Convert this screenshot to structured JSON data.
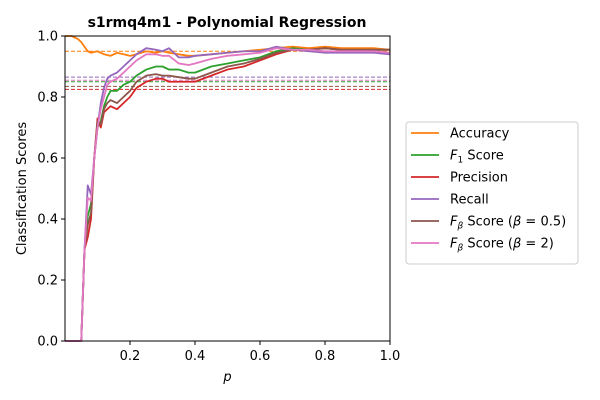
{
  "chart_data": {
    "type": "line",
    "title": "s1rmq4m1 - Polynomial Regression",
    "xlabel": "p",
    "ylabel": "Classification Scores",
    "xlim": [
      0.0,
      1.0
    ],
    "ylim": [
      0.0,
      1.0
    ],
    "x_ticks": [
      {
        "value": 0.2,
        "label": "0.2"
      },
      {
        "value": 0.4,
        "label": "0.4"
      },
      {
        "value": 0.6,
        "label": "0.6"
      },
      {
        "value": 0.8,
        "label": "0.8"
      },
      {
        "value": 1.0,
        "label": "1.0"
      }
    ],
    "y_ticks": [
      {
        "value": 0.0,
        "label": "0.0"
      },
      {
        "value": 0.2,
        "label": "0.2"
      },
      {
        "value": 0.4,
        "label": "0.4"
      },
      {
        "value": 0.6,
        "label": "0.6"
      },
      {
        "value": 0.8,
        "label": "0.8"
      },
      {
        "value": 1.0,
        "label": "1.0"
      }
    ],
    "grid": false,
    "legend_position": "right",
    "series": [
      {
        "name": "Accuracy",
        "color": "#ff7f0e",
        "baseline": 0.95,
        "x": [
          0.0,
          0.02,
          0.04,
          0.05,
          0.06,
          0.07,
          0.08,
          0.1,
          0.12,
          0.14,
          0.16,
          0.18,
          0.2,
          0.22,
          0.25,
          0.28,
          0.3,
          0.32,
          0.35,
          0.38,
          0.4,
          0.45,
          0.5,
          0.55,
          0.6,
          0.65,
          0.7,
          0.75,
          0.8,
          0.85,
          0.9,
          0.95,
          1.0
        ],
        "y": [
          1.0,
          1.0,
          0.99,
          0.98,
          0.965,
          0.95,
          0.945,
          0.95,
          0.94,
          0.935,
          0.945,
          0.94,
          0.935,
          0.94,
          0.95,
          0.945,
          0.95,
          0.945,
          0.94,
          0.935,
          0.935,
          0.94,
          0.945,
          0.95,
          0.955,
          0.96,
          0.965,
          0.96,
          0.965,
          0.96,
          0.96,
          0.96,
          0.955
        ]
      },
      {
        "name": "F₁ Score",
        "color": "#2ca02c",
        "baseline": 0.85,
        "x": [
          0.0,
          0.04,
          0.05,
          0.06,
          0.07,
          0.08,
          0.09,
          0.1,
          0.11,
          0.12,
          0.13,
          0.14,
          0.16,
          0.18,
          0.2,
          0.22,
          0.25,
          0.28,
          0.3,
          0.32,
          0.35,
          0.38,
          0.4,
          0.45,
          0.5,
          0.55,
          0.6,
          0.65,
          0.7,
          0.75,
          0.8,
          0.85,
          0.9,
          0.95,
          1.0
        ],
        "y": [
          0.0,
          0.0,
          0.0,
          0.3,
          0.41,
          0.45,
          0.6,
          0.7,
          0.72,
          0.77,
          0.8,
          0.82,
          0.82,
          0.84,
          0.85,
          0.87,
          0.89,
          0.9,
          0.9,
          0.89,
          0.89,
          0.88,
          0.88,
          0.9,
          0.91,
          0.92,
          0.93,
          0.95,
          0.96,
          0.955,
          0.96,
          0.955,
          0.955,
          0.955,
          0.955
        ]
      },
      {
        "name": "Precision",
        "color": "#d62728",
        "baseline": 0.825,
        "x": [
          0.0,
          0.04,
          0.05,
          0.06,
          0.07,
          0.08,
          0.09,
          0.1,
          0.11,
          0.12,
          0.13,
          0.14,
          0.16,
          0.18,
          0.2,
          0.22,
          0.25,
          0.28,
          0.3,
          0.32,
          0.35,
          0.38,
          0.4,
          0.45,
          0.5,
          0.55,
          0.6,
          0.65,
          0.7,
          0.75,
          0.8,
          0.85,
          0.9,
          0.95,
          1.0
        ],
        "y": [
          0.0,
          0.0,
          0.0,
          0.3,
          0.34,
          0.4,
          0.6,
          0.73,
          0.7,
          0.75,
          0.76,
          0.77,
          0.76,
          0.78,
          0.8,
          0.83,
          0.85,
          0.86,
          0.86,
          0.85,
          0.85,
          0.85,
          0.85,
          0.87,
          0.89,
          0.9,
          0.92,
          0.94,
          0.955,
          0.955,
          0.96,
          0.955,
          0.955,
          0.955,
          0.955
        ]
      },
      {
        "name": "Recall",
        "color": "#9467bd",
        "baseline": 0.865,
        "x": [
          0.0,
          0.04,
          0.05,
          0.06,
          0.07,
          0.08,
          0.09,
          0.1,
          0.11,
          0.12,
          0.13,
          0.14,
          0.16,
          0.18,
          0.2,
          0.22,
          0.25,
          0.28,
          0.3,
          0.32,
          0.35,
          0.38,
          0.4,
          0.45,
          0.5,
          0.55,
          0.6,
          0.65,
          0.7,
          0.75,
          0.8,
          0.85,
          0.9,
          0.95,
          1.0
        ],
        "y": [
          0.0,
          0.0,
          0.0,
          0.3,
          0.51,
          0.48,
          0.6,
          0.7,
          0.78,
          0.83,
          0.86,
          0.87,
          0.88,
          0.9,
          0.92,
          0.94,
          0.96,
          0.955,
          0.95,
          0.96,
          0.93,
          0.93,
          0.935,
          0.94,
          0.945,
          0.95,
          0.95,
          0.965,
          0.955,
          0.95,
          0.945,
          0.945,
          0.945,
          0.945,
          0.94
        ]
      },
      {
        "name": "F_β Score (β = 0.5)",
        "color": "#8c564b",
        "baseline": 0.835,
        "x": [
          0.0,
          0.04,
          0.05,
          0.06,
          0.07,
          0.08,
          0.09,
          0.1,
          0.11,
          0.12,
          0.13,
          0.14,
          0.16,
          0.18,
          0.2,
          0.22,
          0.25,
          0.28,
          0.3,
          0.32,
          0.35,
          0.38,
          0.4,
          0.45,
          0.5,
          0.55,
          0.6,
          0.65,
          0.7,
          0.75,
          0.8,
          0.85,
          0.9,
          0.95,
          1.0
        ],
        "y": [
          0.0,
          0.0,
          0.0,
          0.3,
          0.38,
          0.42,
          0.6,
          0.72,
          0.71,
          0.76,
          0.78,
          0.79,
          0.78,
          0.8,
          0.82,
          0.85,
          0.87,
          0.875,
          0.87,
          0.87,
          0.865,
          0.86,
          0.86,
          0.88,
          0.9,
          0.91,
          0.925,
          0.945,
          0.955,
          0.955,
          0.96,
          0.955,
          0.955,
          0.955,
          0.955
        ]
      },
      {
        "name": "F_β Score (β = 2)",
        "color": "#e377c2",
        "baseline": 0.855,
        "x": [
          0.0,
          0.04,
          0.05,
          0.06,
          0.07,
          0.08,
          0.09,
          0.1,
          0.11,
          0.12,
          0.13,
          0.14,
          0.16,
          0.18,
          0.2,
          0.22,
          0.25,
          0.28,
          0.3,
          0.32,
          0.35,
          0.38,
          0.4,
          0.45,
          0.5,
          0.55,
          0.6,
          0.65,
          0.7,
          0.75,
          0.8,
          0.85,
          0.9,
          0.95,
          1.0
        ],
        "y": [
          0.0,
          0.0,
          0.0,
          0.3,
          0.47,
          0.46,
          0.6,
          0.7,
          0.76,
          0.8,
          0.84,
          0.85,
          0.86,
          0.88,
          0.9,
          0.92,
          0.94,
          0.94,
          0.935,
          0.935,
          0.91,
          0.905,
          0.91,
          0.925,
          0.935,
          0.94,
          0.945,
          0.96,
          0.955,
          0.955,
          0.95,
          0.95,
          0.95,
          0.95,
          0.945
        ]
      }
    ]
  }
}
